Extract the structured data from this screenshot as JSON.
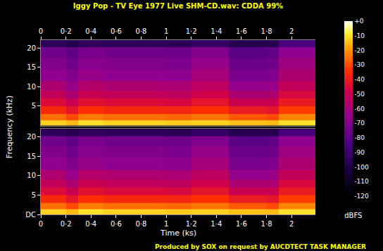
{
  "chart_data": {
    "type": "heatmap",
    "title": "Iggy Pop - TV Eye 1977 Live SHM-CD.wav: CDDA 99%",
    "x_label": "Time (ks)",
    "y_label": "Frequency (kHz)",
    "colorbar_label": "dBFS",
    "footer": "Produced by SOX on request by AUCDTECT TASK MANAGER",
    "xlim": [
      0,
      2.19
    ],
    "ylim": [
      0,
      22.05
    ],
    "xticks": [
      0,
      {
        "value": 0.2,
        "label": "0·2"
      },
      {
        "value": 0.4,
        "label": "0·4"
      },
      {
        "value": 0.6,
        "label": "0·6"
      },
      {
        "value": 0.8,
        "label": "0·8"
      },
      1,
      {
        "value": 1.2,
        "label": "1·2"
      },
      {
        "value": 1.4,
        "label": "1·4"
      },
      {
        "value": 1.6,
        "label": "1·6"
      },
      {
        "value": 1.8,
        "label": "1·8"
      },
      2
    ],
    "color_range": [
      -120,
      0
    ],
    "color_ticks": [
      {
        "value": 0,
        "label": "+0"
      },
      -10,
      -20,
      -30,
      -40,
      -50,
      -60,
      -70,
      -80,
      -90,
      -100,
      -110,
      -120
    ],
    "x": [
      0.05,
      0.15,
      0.25,
      0.35,
      0.45,
      0.55,
      0.65,
      0.75,
      0.85,
      0.95,
      1.05,
      1.15,
      1.25,
      1.35,
      1.45,
      1.55,
      1.65,
      1.75,
      1.85,
      1.95,
      2.05,
      2.15
    ],
    "y": [
      0.5,
      2,
      4,
      6,
      8,
      10,
      13,
      16,
      19,
      21.5
    ],
    "channels": [
      {
        "yticks": [
          5,
          10,
          15,
          20
        ],
        "z": [
          [
            -12,
            -12,
            -15,
            -10,
            -10,
            -12,
            -12,
            -12,
            -12,
            -12,
            -13,
            -13,
            -12,
            -12,
            -12,
            -14,
            -14,
            -14,
            -15,
            -10,
            -10,
            -10
          ],
          [
            -25,
            -25,
            -30,
            -23,
            -23,
            -25,
            -25,
            -25,
            -25,
            -25,
            -26,
            -26,
            -24,
            -24,
            -24,
            -28,
            -28,
            -28,
            -30,
            -22,
            -22,
            -22
          ],
          [
            -36,
            -36,
            -42,
            -34,
            -34,
            -36,
            -36,
            -36,
            -36,
            -36,
            -37,
            -37,
            -34,
            -34,
            -34,
            -40,
            -40,
            -40,
            -42,
            -32,
            -32,
            -32
          ],
          [
            -45,
            -45,
            -50,
            -43,
            -43,
            -45,
            -45,
            -45,
            -45,
            -45,
            -46,
            -46,
            -42,
            -42,
            -42,
            -50,
            -50,
            -50,
            -50,
            -40,
            -40,
            -40
          ],
          [
            -52,
            -52,
            -58,
            -50,
            -50,
            -52,
            -52,
            -52,
            -52,
            -52,
            -53,
            -53,
            -48,
            -48,
            -48,
            -58,
            -58,
            -58,
            -58,
            -46,
            -46,
            -46
          ],
          [
            -58,
            -58,
            -64,
            -56,
            -56,
            -58,
            -58,
            -58,
            -58,
            -58,
            -59,
            -59,
            -54,
            -54,
            -54,
            -65,
            -65,
            -65,
            -64,
            -52,
            -52,
            -52
          ],
          [
            -66,
            -66,
            -70,
            -64,
            -64,
            -66,
            -66,
            -66,
            -66,
            -66,
            -67,
            -67,
            -60,
            -60,
            -60,
            -72,
            -72,
            -72,
            -70,
            -58,
            -58,
            -58
          ],
          [
            -70,
            -70,
            -74,
            -68,
            -68,
            -70,
            -70,
            -70,
            -70,
            -70,
            -71,
            -71,
            -64,
            -64,
            -64,
            -76,
            -76,
            -76,
            -74,
            -62,
            -62,
            -62
          ],
          [
            -74,
            -74,
            -78,
            -72,
            -72,
            -74,
            -74,
            -74,
            -74,
            -74,
            -75,
            -75,
            -70,
            -70,
            -70,
            -80,
            -80,
            -80,
            -78,
            -66,
            -66,
            -66
          ],
          [
            -95,
            -95,
            -98,
            -94,
            -94,
            -95,
            -95,
            -95,
            -95,
            -95,
            -96,
            -96,
            -92,
            -92,
            -92,
            -98,
            -98,
            -98,
            -98,
            -85,
            -85,
            -85
          ]
        ]
      },
      {
        "yticks": [
          {
            "value": 0,
            "label": "DC"
          },
          5,
          10,
          15,
          20
        ],
        "z": [
          [
            -12,
            -12,
            -15,
            -10,
            -10,
            -12,
            -12,
            -12,
            -12,
            -12,
            -13,
            -13,
            -12,
            -12,
            -12,
            -14,
            -14,
            -14,
            -15,
            -10,
            -10,
            -10
          ],
          [
            -25,
            -25,
            -30,
            -23,
            -23,
            -25,
            -25,
            -25,
            -25,
            -25,
            -26,
            -26,
            -24,
            -24,
            -24,
            -28,
            -28,
            -28,
            -30,
            -22,
            -22,
            -22
          ],
          [
            -36,
            -36,
            -42,
            -34,
            -34,
            -36,
            -36,
            -36,
            -36,
            -36,
            -37,
            -37,
            -34,
            -34,
            -34,
            -40,
            -40,
            -40,
            -42,
            -32,
            -32,
            -32
          ],
          [
            -45,
            -45,
            -50,
            -43,
            -43,
            -45,
            -45,
            -45,
            -45,
            -45,
            -46,
            -46,
            -42,
            -42,
            -42,
            -50,
            -50,
            -50,
            -50,
            -40,
            -40,
            -40
          ],
          [
            -52,
            -52,
            -58,
            -50,
            -50,
            -52,
            -52,
            -52,
            -52,
            -52,
            -53,
            -53,
            -48,
            -48,
            -48,
            -58,
            -58,
            -58,
            -58,
            -46,
            -46,
            -46
          ],
          [
            -58,
            -58,
            -64,
            -56,
            -56,
            -58,
            -58,
            -58,
            -58,
            -58,
            -59,
            -59,
            -54,
            -54,
            -54,
            -65,
            -65,
            -65,
            -64,
            -52,
            -52,
            -52
          ],
          [
            -66,
            -66,
            -70,
            -64,
            -64,
            -66,
            -66,
            -66,
            -66,
            -66,
            -67,
            -67,
            -60,
            -60,
            -60,
            -72,
            -72,
            -72,
            -70,
            -58,
            -58,
            -58
          ],
          [
            -70,
            -70,
            -74,
            -68,
            -68,
            -70,
            -70,
            -70,
            -70,
            -70,
            -71,
            -71,
            -64,
            -64,
            -64,
            -76,
            -76,
            -76,
            -74,
            -62,
            -62,
            -62
          ],
          [
            -74,
            -74,
            -78,
            -72,
            -72,
            -74,
            -74,
            -74,
            -74,
            -74,
            -75,
            -75,
            -70,
            -70,
            -70,
            -80,
            -80,
            -80,
            -78,
            -66,
            -66,
            -66
          ],
          [
            -95,
            -95,
            -98,
            -94,
            -94,
            -95,
            -95,
            -95,
            -95,
            -95,
            -96,
            -96,
            -92,
            -92,
            -92,
            -98,
            -98,
            -98,
            -98,
            -85,
            -85,
            -85
          ]
        ]
      }
    ]
  }
}
